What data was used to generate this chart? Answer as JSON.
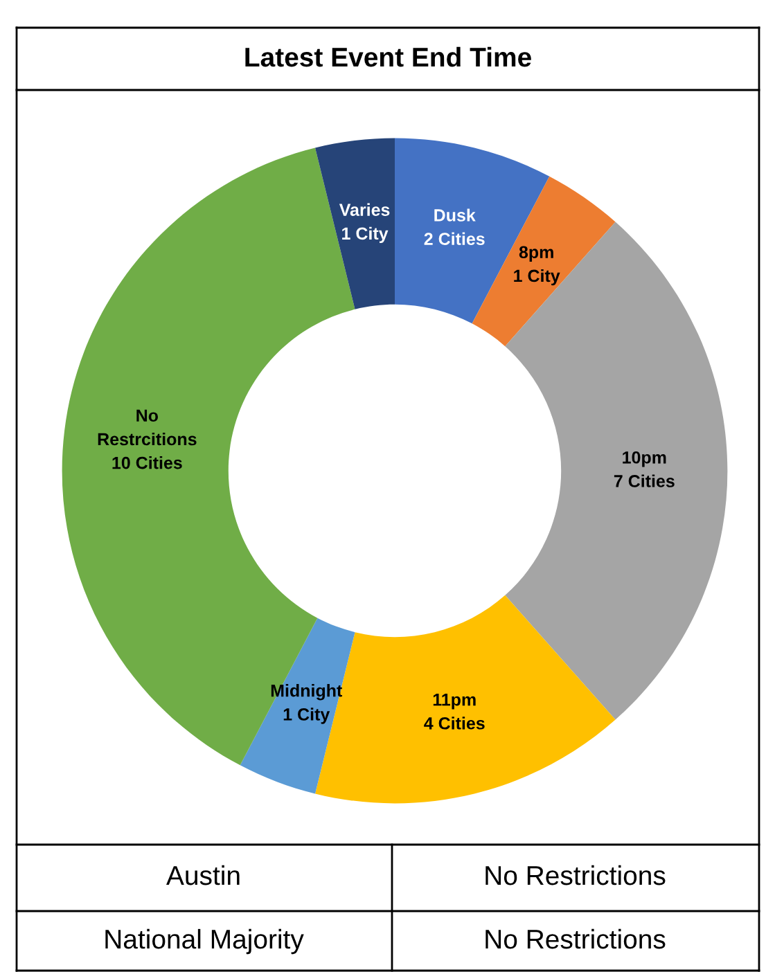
{
  "chart_data": {
    "type": "donut",
    "title": "Latest Event End Time",
    "categories": [
      "Dusk",
      "8pm",
      "10pm",
      "11pm",
      "Midnight",
      "No Restrcitions",
      "Varies"
    ],
    "values": [
      2,
      1,
      7,
      4,
      1,
      10,
      1
    ],
    "colors": [
      "#4472c4",
      "#ed7d31",
      "#a5a5a5",
      "#ffc000",
      "#5b9bd5",
      "#70ad47",
      "#264478"
    ],
    "value_labels": [
      "2 Cities",
      "1 City",
      "7 Cities",
      "4 Cities",
      "1 City",
      "10 Cities",
      "1 City"
    ],
    "legend": false,
    "annotations": [
      "Austin",
      "No Restrictions",
      "National Majority",
      "No Restrictions"
    ]
  }
}
